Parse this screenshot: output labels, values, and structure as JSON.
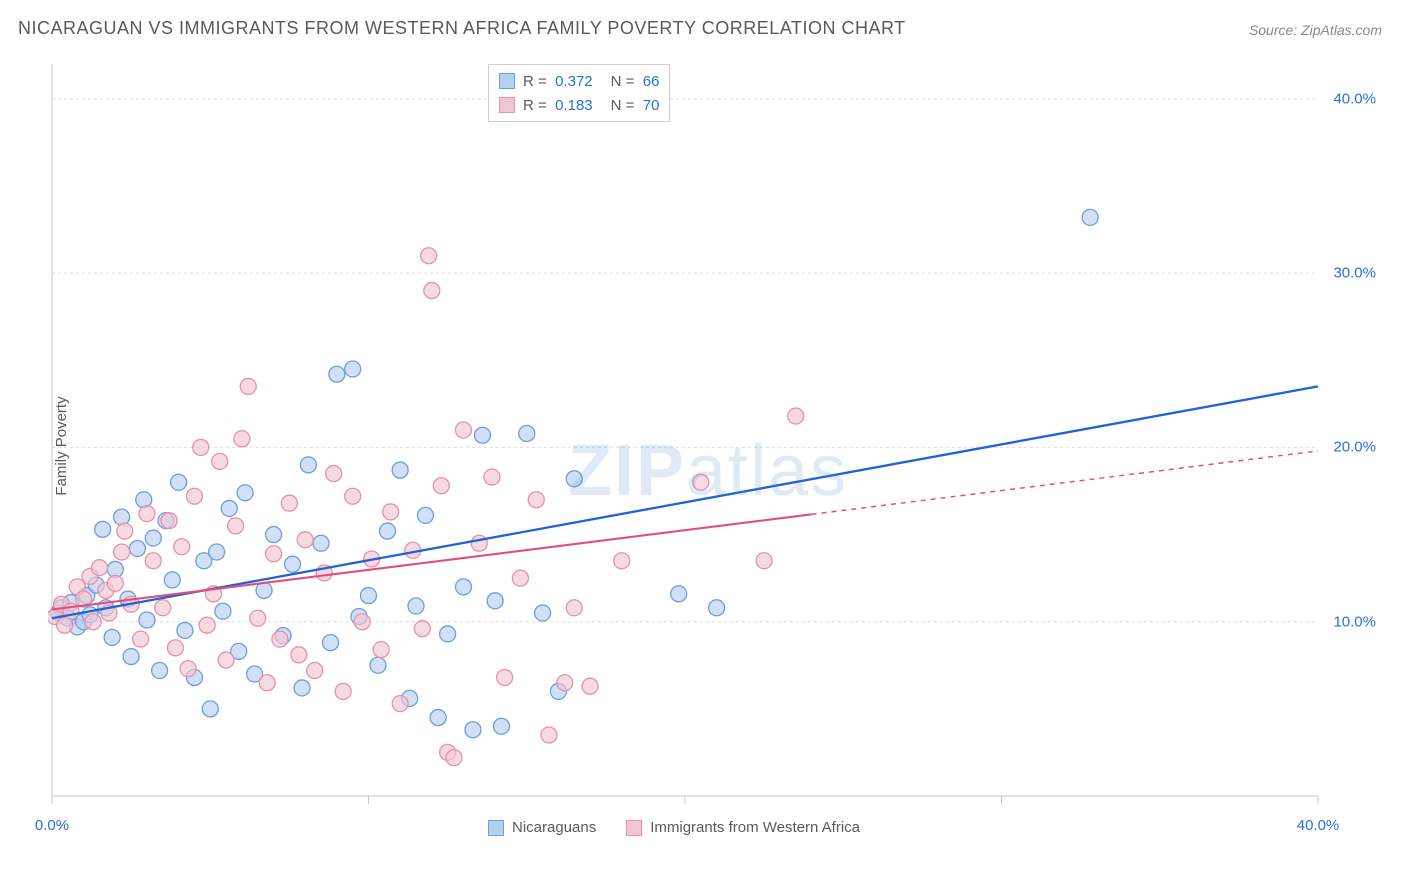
{
  "title": "NICARAGUAN VS IMMIGRANTS FROM WESTERN AFRICA FAMILY POVERTY CORRELATION CHART",
  "source": "Source: ZipAtlas.com",
  "ylabel": "Family Poverty",
  "watermark": {
    "bold_part": "ZIP",
    "rest_part": "atlas"
  },
  "chart": {
    "type": "scatter",
    "background_color": "#ffffff",
    "border_color": "#c8c8c8",
    "grid_color": "#dcdcdc",
    "xlim": [
      0,
      40
    ],
    "ylim": [
      0,
      42
    ],
    "xticks": [
      0,
      40
    ],
    "xtick_labels": [
      "0.0%",
      "40.0%"
    ],
    "yticks": [
      10,
      20,
      30,
      40
    ],
    "ytick_labels": [
      "10.0%",
      "20.0%",
      "30.0%",
      "40.0%"
    ],
    "xtick_minor": [
      10,
      20,
      30
    ],
    "ytick_fontsize": 15,
    "xtick_fontsize": 15,
    "tick_color": "#2a6fdb",
    "marker_radius": 8,
    "marker_stroke_width": 1.3,
    "series": [
      {
        "name": "nicaraguans",
        "label": "Nicaraguans",
        "fill": "#b8d0ef",
        "stroke": "#6a9fe0",
        "fill_opacity": 0.65,
        "trend": {
          "x1": 0,
          "y1": 10.2,
          "x2": 40,
          "y2": 23.5,
          "solid_until": 40,
          "stroke": "#1f63d6",
          "width": 2.3
        },
        "points": [
          [
            0.2,
            10.5
          ],
          [
            0.3,
            10.8
          ],
          [
            0.5,
            10.2
          ],
          [
            0.6,
            11.1
          ],
          [
            0.8,
            9.7
          ],
          [
            1.0,
            10.0
          ],
          [
            1.1,
            11.5
          ],
          [
            1.2,
            10.4
          ],
          [
            1.4,
            12.1
          ],
          [
            1.6,
            15.3
          ],
          [
            1.7,
            10.8
          ],
          [
            1.9,
            9.1
          ],
          [
            2.0,
            13.0
          ],
          [
            2.2,
            16.0
          ],
          [
            2.4,
            11.3
          ],
          [
            2.5,
            8.0
          ],
          [
            2.7,
            14.2
          ],
          [
            2.9,
            17.0
          ],
          [
            3.0,
            10.1
          ],
          [
            3.2,
            14.8
          ],
          [
            3.4,
            7.2
          ],
          [
            3.6,
            15.8
          ],
          [
            3.8,
            12.4
          ],
          [
            4.0,
            18.0
          ],
          [
            4.2,
            9.5
          ],
          [
            4.5,
            6.8
          ],
          [
            4.8,
            13.5
          ],
          [
            5.0,
            5.0
          ],
          [
            5.2,
            14.0
          ],
          [
            5.4,
            10.6
          ],
          [
            5.6,
            16.5
          ],
          [
            5.9,
            8.3
          ],
          [
            6.1,
            17.4
          ],
          [
            6.4,
            7.0
          ],
          [
            6.7,
            11.8
          ],
          [
            7.0,
            15.0
          ],
          [
            7.3,
            9.2
          ],
          [
            7.6,
            13.3
          ],
          [
            7.9,
            6.2
          ],
          [
            8.1,
            19.0
          ],
          [
            8.5,
            14.5
          ],
          [
            8.8,
            8.8
          ],
          [
            9.0,
            24.2
          ],
          [
            9.5,
            24.5
          ],
          [
            9.7,
            10.3
          ],
          [
            10.0,
            11.5
          ],
          [
            10.3,
            7.5
          ],
          [
            10.6,
            15.2
          ],
          [
            11.0,
            18.7
          ],
          [
            11.3,
            5.6
          ],
          [
            11.5,
            10.9
          ],
          [
            11.8,
            16.1
          ],
          [
            12.2,
            4.5
          ],
          [
            12.5,
            9.3
          ],
          [
            13.0,
            12.0
          ],
          [
            13.3,
            3.8
          ],
          [
            13.6,
            20.7
          ],
          [
            14.0,
            11.2
          ],
          [
            14.2,
            4.0
          ],
          [
            15.0,
            20.8
          ],
          [
            15.5,
            10.5
          ],
          [
            16.0,
            6.0
          ],
          [
            16.5,
            18.2
          ],
          [
            19.8,
            11.6
          ],
          [
            21.0,
            10.8
          ],
          [
            32.8,
            33.2
          ]
        ]
      },
      {
        "name": "w_africa",
        "label": "Immigrants from Western Africa",
        "fill": "#f1c6d2",
        "stroke": "#e890ac",
        "fill_opacity": 0.65,
        "trend": {
          "x1": 0,
          "y1": 10.7,
          "x2": 40,
          "y2": 19.8,
          "solid_until": 24,
          "stroke": "#e44d7a",
          "width": 2.1,
          "dash": "5,5"
        },
        "points": [
          [
            0.1,
            10.3
          ],
          [
            0.3,
            11.0
          ],
          [
            0.4,
            9.8
          ],
          [
            0.6,
            10.6
          ],
          [
            0.8,
            12.0
          ],
          [
            1.0,
            11.3
          ],
          [
            1.2,
            12.6
          ],
          [
            1.3,
            10.0
          ],
          [
            1.5,
            13.1
          ],
          [
            1.7,
            11.8
          ],
          [
            1.8,
            10.5
          ],
          [
            2.0,
            12.2
          ],
          [
            2.2,
            14.0
          ],
          [
            2.3,
            15.2
          ],
          [
            2.5,
            11.0
          ],
          [
            2.8,
            9.0
          ],
          [
            3.0,
            16.2
          ],
          [
            3.2,
            13.5
          ],
          [
            3.5,
            10.8
          ],
          [
            3.7,
            15.8
          ],
          [
            3.9,
            8.5
          ],
          [
            4.1,
            14.3
          ],
          [
            4.3,
            7.3
          ],
          [
            4.5,
            17.2
          ],
          [
            4.7,
            20.0
          ],
          [
            4.9,
            9.8
          ],
          [
            5.1,
            11.6
          ],
          [
            5.3,
            19.2
          ],
          [
            5.5,
            7.8
          ],
          [
            5.8,
            15.5
          ],
          [
            6.0,
            20.5
          ],
          [
            6.2,
            23.5
          ],
          [
            6.5,
            10.2
          ],
          [
            6.8,
            6.5
          ],
          [
            7.0,
            13.9
          ],
          [
            7.2,
            9.0
          ],
          [
            7.5,
            16.8
          ],
          [
            7.8,
            8.1
          ],
          [
            8.0,
            14.7
          ],
          [
            8.3,
            7.2
          ],
          [
            8.6,
            12.8
          ],
          [
            8.9,
            18.5
          ],
          [
            9.2,
            6.0
          ],
          [
            9.5,
            17.2
          ],
          [
            9.8,
            10.0
          ],
          [
            10.1,
            13.6
          ],
          [
            10.4,
            8.4
          ],
          [
            10.7,
            16.3
          ],
          [
            11.0,
            5.3
          ],
          [
            11.4,
            14.1
          ],
          [
            11.7,
            9.6
          ],
          [
            11.9,
            31.0
          ],
          [
            12.0,
            29.0
          ],
          [
            12.3,
            17.8
          ],
          [
            12.5,
            2.5
          ],
          [
            12.7,
            2.2
          ],
          [
            13.0,
            21.0
          ],
          [
            13.5,
            14.5
          ],
          [
            13.9,
            18.3
          ],
          [
            14.3,
            6.8
          ],
          [
            14.8,
            12.5
          ],
          [
            15.3,
            17.0
          ],
          [
            15.7,
            3.5
          ],
          [
            16.2,
            6.5
          ],
          [
            16.5,
            10.8
          ],
          [
            17.0,
            6.3
          ],
          [
            18.0,
            13.5
          ],
          [
            20.5,
            18.0
          ],
          [
            22.5,
            13.5
          ],
          [
            23.5,
            21.8
          ]
        ]
      }
    ]
  },
  "legend_top": {
    "rows": [
      {
        "series": 0,
        "r_label": "R =",
        "r_val": "0.372",
        "n_label": "N =",
        "n_val": "66"
      },
      {
        "series": 1,
        "r_label": "R =",
        "r_val": "0.183",
        "n_label": "N =",
        "n_val": "70"
      }
    ]
  },
  "legend_bottom": {
    "items": [
      {
        "series": 0,
        "label": "Nicaraguans"
      },
      {
        "series": 1,
        "label": "Immigrants from Western Africa"
      }
    ]
  }
}
